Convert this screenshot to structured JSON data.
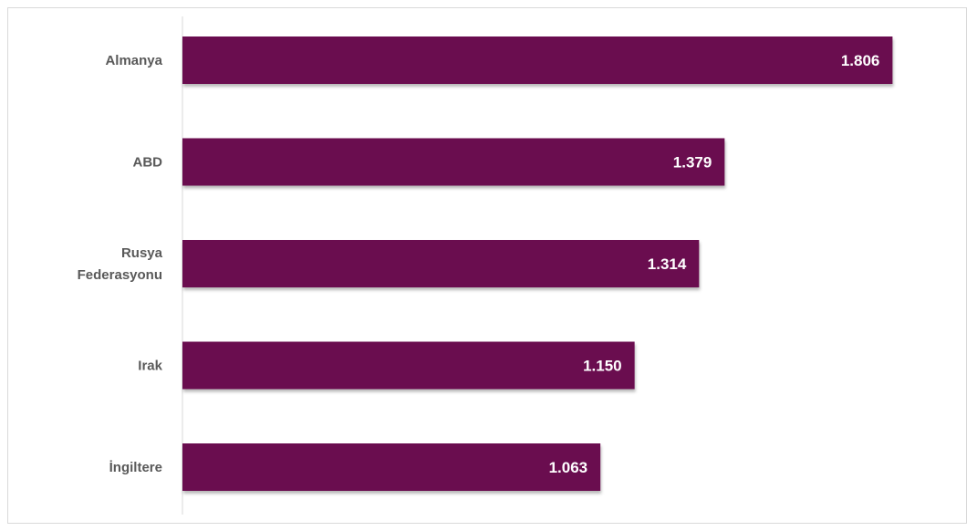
{
  "chart_data": {
    "type": "bar",
    "orientation": "horizontal",
    "title": "",
    "xlabel": "",
    "ylabel": "",
    "categories": [
      "Almanya",
      "ABD",
      "Rusya Federasyonu",
      "Irak",
      "İngiltere"
    ],
    "category_lines": [
      [
        "Almanya"
      ],
      [
        "ABD"
      ],
      [
        "Rusya",
        "Federasyonu"
      ],
      [
        "Irak"
      ],
      [
        "İngiltere"
      ]
    ],
    "values": [
      1806,
      1379,
      1314,
      1150,
      1063
    ],
    "value_labels": [
      "1.806",
      "1.379",
      "1.314",
      "1.150",
      "1.063"
    ],
    "xlim": [
      0,
      2000
    ],
    "grid": false,
    "legend": "none",
    "bar_color": "#6b0d4f",
    "axis_line_color": "#d9d9d9"
  }
}
